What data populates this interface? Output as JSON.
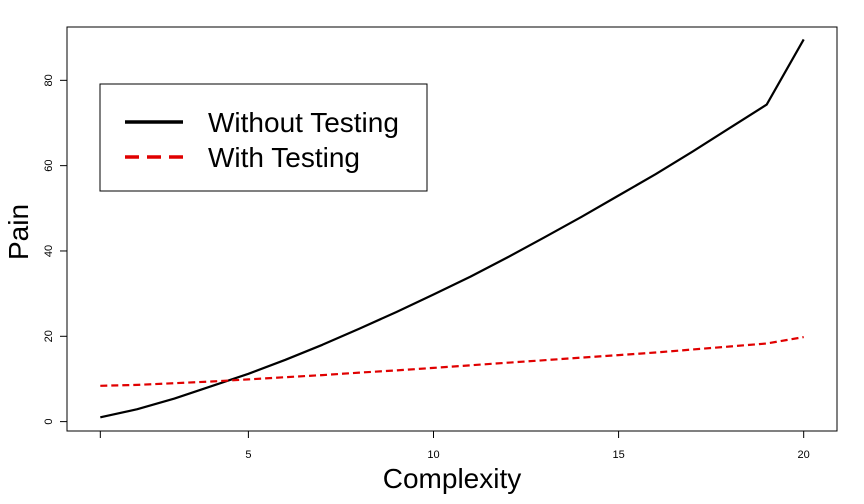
{
  "chart_data": {
    "type": "line",
    "title": "",
    "xlabel": "Complexity",
    "ylabel": "Pain",
    "xlim": [
      0.1,
      20.9
    ],
    "ylim": [
      -2.2,
      92.5
    ],
    "x_ticks": [
      5,
      10,
      15,
      20
    ],
    "y_ticks": [
      0,
      20,
      40,
      60,
      80
    ],
    "grid": false,
    "legend_position": "top-left",
    "series": [
      {
        "name": "Without Testing",
        "color": "#000000",
        "dash": "solid",
        "x": [
          1,
          2,
          3,
          4,
          5,
          6,
          7,
          8,
          9,
          10,
          11,
          12,
          13,
          14,
          15,
          16,
          17,
          18,
          19,
          20
        ],
        "y": [
          1.0,
          2.9,
          5.4,
          8.3,
          11.2,
          14.5,
          18.0,
          21.8,
          25.7,
          29.8,
          34.0,
          38.5,
          43.2,
          48.0,
          53.0,
          58.0,
          63.3,
          68.8,
          74.3,
          89.6
        ]
      },
      {
        "name": "With Testing",
        "color": "#e00000",
        "dash": "dashed",
        "x": [
          1,
          2,
          3,
          4,
          5,
          6,
          7,
          8,
          9,
          10,
          11,
          12,
          13,
          14,
          15,
          16,
          17,
          18,
          19,
          20
        ],
        "y": [
          8.4,
          8.6,
          9.0,
          9.4,
          9.9,
          10.4,
          10.9,
          11.5,
          12.0,
          12.6,
          13.2,
          13.8,
          14.4,
          15.0,
          15.6,
          16.2,
          16.9,
          17.6,
          18.3,
          19.8
        ]
      }
    ]
  }
}
